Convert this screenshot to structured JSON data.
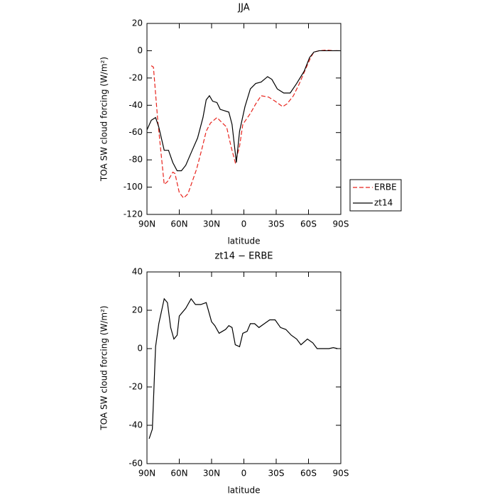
{
  "chart_data": [
    {
      "type": "line",
      "title": "JJA",
      "xlabel": "latitude",
      "ylabel": "TOA SW cloud forcing (W/m²)",
      "xlim": [
        90,
        -90
      ],
      "xticks": [
        {
          "value": 90,
          "label": "90N"
        },
        {
          "value": 60,
          "label": "60N"
        },
        {
          "value": 30,
          "label": "30N"
        },
        0,
        {
          "value": -30,
          "label": "30S"
        },
        {
          "value": -60,
          "label": "60S"
        },
        {
          "value": -90,
          "label": "90S"
        }
      ],
      "ylim": [
        -120,
        20
      ],
      "yticks": [
        20,
        0,
        -20,
        -40,
        -60,
        -80,
        -100,
        -120
      ],
      "legend": "right",
      "series": [
        {
          "name": "ERBE",
          "color": "#e8231c",
          "linestyle": "dashed",
          "x": [
            86,
            84,
            80,
            74,
            71,
            66,
            64,
            60,
            56,
            52,
            48,
            44,
            39,
            35,
            31,
            25,
            20,
            16,
            12,
            8,
            4,
            1,
            -6,
            -11,
            -16,
            -23,
            -29,
            -36,
            -40,
            -46,
            -51,
            -57,
            -62,
            -65,
            -70,
            -77,
            -83,
            -87
          ],
          "values": [
            -11,
            -12,
            -51,
            -98,
            -96,
            -89,
            -90,
            -104,
            -108,
            -105,
            -96,
            -87,
            -72,
            -59,
            -53,
            -49,
            -53,
            -56,
            -70,
            -82,
            -70,
            -54,
            -46,
            -39,
            -33,
            -34,
            -37,
            -41,
            -39,
            -33,
            -25,
            -14,
            -5,
            -1,
            0,
            0.5,
            0,
            0
          ]
        },
        {
          "name": "zt14",
          "color": "#000000",
          "linestyle": "solid",
          "x": [
            90,
            86,
            82,
            79,
            74,
            70,
            66,
            62,
            58,
            54,
            48,
            43,
            38,
            35,
            32,
            29,
            25,
            22,
            14,
            11,
            7,
            4,
            -1,
            -6,
            -11,
            -16,
            -22,
            -26,
            -31,
            -37,
            -43,
            -49,
            -56,
            -61,
            -65,
            -70,
            -77,
            -83,
            -89
          ],
          "values": [
            -58,
            -51,
            -49,
            -56,
            -73,
            -73,
            -82,
            -88,
            -88,
            -84,
            -73,
            -64,
            -49,
            -36,
            -33,
            -37,
            -38,
            -43,
            -45,
            -54,
            -82,
            -59,
            -41,
            -28,
            -24,
            -23,
            -19,
            -21,
            -28,
            -31,
            -31,
            -24,
            -15,
            -5,
            -1,
            0,
            0,
            0,
            0
          ]
        }
      ]
    },
    {
      "type": "line",
      "title": "zt14 − ERBE",
      "xlabel": "latitude",
      "ylabel": "TOA SW cloud forcing (W/m²)",
      "xlim": [
        90,
        -90
      ],
      "xticks": [
        {
          "value": 90,
          "label": "90N"
        },
        {
          "value": 60,
          "label": "60N"
        },
        {
          "value": 30,
          "label": "30N"
        },
        0,
        {
          "value": -30,
          "label": "30S"
        },
        {
          "value": -60,
          "label": "60S"
        },
        {
          "value": -90,
          "label": "90S"
        }
      ],
      "ylim": [
        -60,
        40
      ],
      "yticks": [
        40,
        20,
        0,
        -20,
        -40,
        -60
      ],
      "series": [
        {
          "color": "#000000",
          "linestyle": "solid",
          "x": [
            88,
            85,
            82,
            79,
            74,
            71,
            68,
            65,
            62,
            60,
            54,
            49,
            45,
            40,
            35,
            30,
            27,
            23,
            20,
            17,
            14,
            11,
            8,
            4,
            1,
            -3,
            -6,
            -10,
            -14,
            -19,
            -24,
            -29,
            -34,
            -39,
            -44,
            -49,
            -53,
            -59,
            -64,
            -68,
            -73,
            -79,
            -83,
            -87
          ],
          "values": [
            -47,
            -42,
            1,
            13,
            26,
            24,
            11,
            5,
            7,
            17,
            21,
            26,
            23,
            23,
            24,
            14,
            12,
            8,
            9,
            10,
            12,
            11,
            2,
            1,
            8,
            9,
            13,
            13,
            11,
            13,
            15,
            15,
            11,
            10,
            7,
            5,
            2,
            5,
            3,
            0,
            0,
            0,
            0.5,
            0
          ]
        }
      ]
    }
  ]
}
